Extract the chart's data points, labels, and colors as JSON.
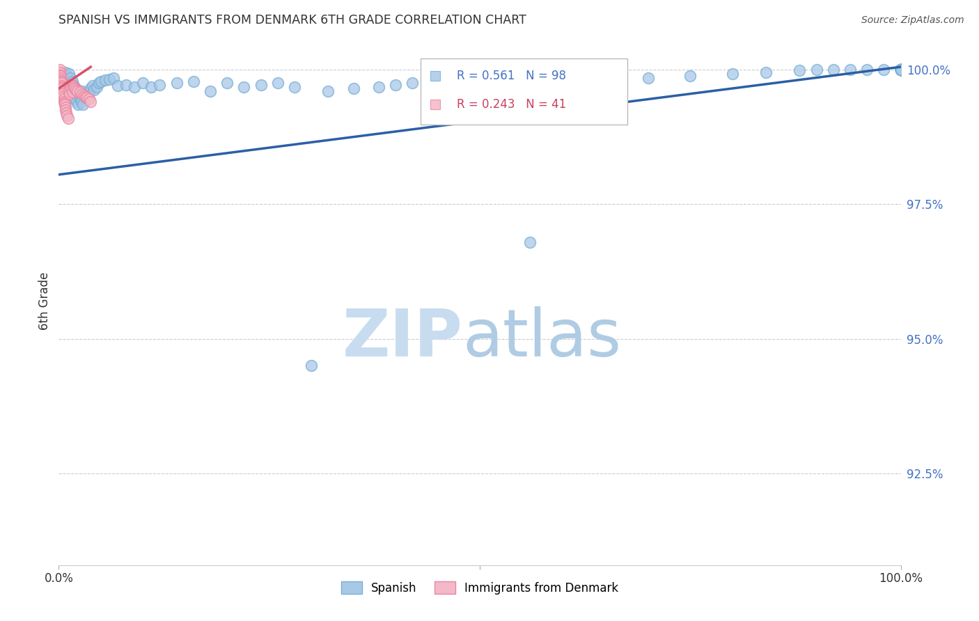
{
  "title": "SPANISH VS IMMIGRANTS FROM DENMARK 6TH GRADE CORRELATION CHART",
  "source": "Source: ZipAtlas.com",
  "ylabel": "6th Grade",
  "ytick_values": [
    1.0,
    0.975,
    0.95,
    0.925
  ],
  "xlim": [
    0.0,
    1.0
  ],
  "ylim": [
    0.908,
    1.006
  ],
  "blue_R": 0.561,
  "blue_N": 98,
  "pink_R": 0.243,
  "pink_N": 41,
  "blue_color": "#a8c8e8",
  "blue_edge_color": "#7aafd4",
  "pink_color": "#f4b8c8",
  "pink_edge_color": "#e888a0",
  "blue_line_color": "#2b5fa5",
  "pink_line_color": "#d9506a",
  "legend_label_blue": "Spanish",
  "legend_label_pink": "Immigrants from Denmark",
  "blue_line_x0": 0.0,
  "blue_line_x1": 1.0,
  "blue_line_y0": 0.9805,
  "blue_line_y1": 1.0005,
  "pink_line_x0": 0.0,
  "pink_line_x1": 0.038,
  "pink_line_y0": 0.9965,
  "pink_line_y1": 1.0005,
  "blue_scatter_x": [
    0.005,
    0.007,
    0.008,
    0.009,
    0.01,
    0.011,
    0.012,
    0.013,
    0.014,
    0.015,
    0.016,
    0.017,
    0.018,
    0.019,
    0.02,
    0.021,
    0.022,
    0.023,
    0.024,
    0.025,
    0.026,
    0.027,
    0.028,
    0.029,
    0.03,
    0.032,
    0.034,
    0.036,
    0.038,
    0.04,
    0.042,
    0.045,
    0.048,
    0.05,
    0.055,
    0.06,
    0.065,
    0.07,
    0.08,
    0.09,
    0.1,
    0.11,
    0.12,
    0.14,
    0.16,
    0.18,
    0.2,
    0.22,
    0.24,
    0.26,
    0.28,
    0.3,
    0.32,
    0.35,
    0.38,
    0.4,
    0.42,
    0.45,
    0.48,
    0.5,
    0.53,
    0.56,
    0.58,
    0.6,
    0.65,
    0.7,
    0.75,
    0.8,
    0.84,
    0.88,
    0.9,
    0.92,
    0.94,
    0.96,
    0.98,
    1.0,
    1.0,
    1.0,
    1.0,
    1.0,
    1.0,
    1.0,
    1.0,
    1.0,
    1.0,
    1.0,
    1.0,
    1.0,
    1.0,
    1.0,
    1.0,
    1.0,
    1.0,
    1.0,
    1.0,
    1.0,
    1.0,
    1.0
  ],
  "blue_scatter_y": [
    0.999,
    0.9985,
    0.9995,
    0.998,
    0.9988,
    0.9975,
    0.9992,
    0.997,
    0.9985,
    0.996,
    0.9978,
    0.9955,
    0.997,
    0.9945,
    0.9965,
    0.994,
    0.996,
    0.9935,
    0.9955,
    0.9945,
    0.995,
    0.994,
    0.996,
    0.9935,
    0.9955,
    0.9948,
    0.9952,
    0.9958,
    0.9965,
    0.997,
    0.9962,
    0.9968,
    0.9975,
    0.9978,
    0.998,
    0.9982,
    0.9985,
    0.997,
    0.9972,
    0.9968,
    0.9975,
    0.9968,
    0.9972,
    0.9975,
    0.9978,
    0.996,
    0.9975,
    0.9968,
    0.9972,
    0.9975,
    0.9968,
    0.945,
    0.996,
    0.9965,
    0.9968,
    0.9972,
    0.9975,
    0.9978,
    0.998,
    0.9975,
    0.9972,
    0.968,
    0.9975,
    0.9978,
    0.998,
    0.9985,
    0.9988,
    0.9992,
    0.9995,
    0.9998,
    1.0,
    1.0,
    1.0,
    1.0,
    1.0,
    1.0,
    1.0,
    1.0,
    1.0,
    1.0,
    1.0,
    1.0,
    1.0,
    1.0,
    1.0,
    1.0,
    1.0,
    1.0,
    1.0,
    1.0,
    1.0,
    1.0,
    1.0,
    1.0,
    1.0,
    1.0,
    1.0,
    1.0
  ],
  "pink_scatter_x": [
    0.001,
    0.001,
    0.001,
    0.002,
    0.002,
    0.002,
    0.003,
    0.003,
    0.003,
    0.004,
    0.004,
    0.004,
    0.005,
    0.005,
    0.005,
    0.006,
    0.006,
    0.007,
    0.007,
    0.008,
    0.008,
    0.009,
    0.01,
    0.011,
    0.012,
    0.013,
    0.014,
    0.015,
    0.016,
    0.017,
    0.018,
    0.019,
    0.02,
    0.022,
    0.025,
    0.028,
    0.03,
    0.032,
    0.034,
    0.036,
    0.038
  ],
  "pink_scatter_y": [
    1.0,
    0.9995,
    0.999,
    0.9988,
    0.9985,
    0.998,
    0.9978,
    0.9975,
    0.997,
    0.9968,
    0.9965,
    0.996,
    0.9958,
    0.9955,
    0.995,
    0.9945,
    0.994,
    0.9938,
    0.9935,
    0.993,
    0.9925,
    0.992,
    0.9915,
    0.991,
    0.996,
    0.9955,
    0.9972,
    0.9965,
    0.9958,
    0.997,
    0.9968,
    0.9965,
    0.9962,
    0.996,
    0.9958,
    0.9955,
    0.9952,
    0.995,
    0.9948,
    0.9945,
    0.994
  ]
}
